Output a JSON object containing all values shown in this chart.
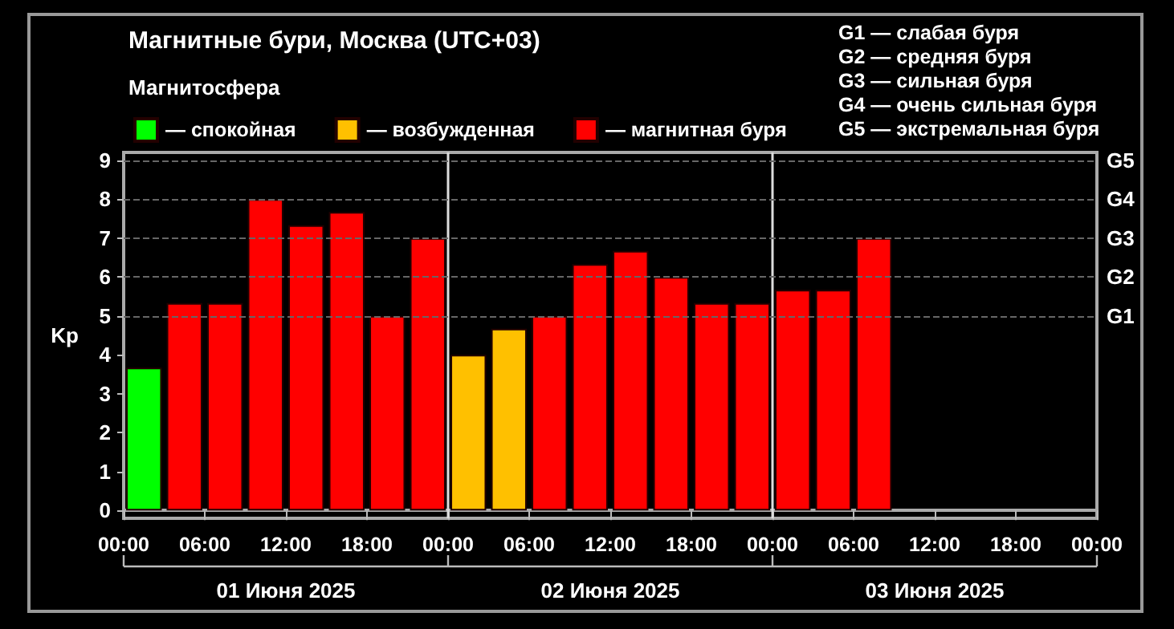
{
  "chart_data": {
    "type": "bar",
    "title": "Магнитные бури, Москва (UTC+03)",
    "legend_title": "Магнитосфера",
    "ylabel": "Kp",
    "x": [
      "2025-06-01T01:30",
      "2025-06-01T04:30",
      "2025-06-01T07:30",
      "2025-06-01T10:30",
      "2025-06-01T13:30",
      "2025-06-01T16:30",
      "2025-06-01T19:30",
      "2025-06-01T22:30",
      "2025-06-02T01:30",
      "2025-06-02T04:30",
      "2025-06-02T07:30",
      "2025-06-02T10:30",
      "2025-06-02T13:30",
      "2025-06-02T16:30",
      "2025-06-02T19:30",
      "2025-06-02T22:30",
      "2025-06-03T01:30",
      "2025-06-03T04:30",
      "2025-06-03T07:30"
    ],
    "series": [
      {
        "name": "— спокойная",
        "color": "#00ff00",
        "values": [
          3.67,
          null,
          null,
          null,
          null,
          null,
          null,
          null,
          null,
          null,
          null,
          null,
          null,
          null,
          null,
          null,
          null,
          null,
          null
        ]
      },
      {
        "name": "— возбужденная",
        "color": "#ffc000",
        "values": [
          null,
          null,
          null,
          null,
          null,
          null,
          null,
          null,
          4,
          4.67,
          null,
          null,
          null,
          null,
          null,
          null,
          null,
          null,
          null
        ]
      },
      {
        "name": "— магнитная буря",
        "color": "#ff0000",
        "values": [
          null,
          5.33,
          5.33,
          8,
          7.33,
          7.67,
          5,
          7,
          null,
          null,
          5,
          6.33,
          6.67,
          6,
          5.33,
          5.33,
          5.67,
          5.67,
          7
        ]
      }
    ],
    "xlim": [
      "2025-06-01T00:00",
      "2025-06-04T00:00"
    ],
    "xticks": [
      {
        "value": "2025-06-01T00:00",
        "label": "00:00"
      },
      {
        "value": "2025-06-01T06:00",
        "label": "06:00"
      },
      {
        "value": "2025-06-01T12:00",
        "label": "12:00"
      },
      {
        "value": "2025-06-01T18:00",
        "label": "18:00"
      },
      {
        "value": "2025-06-02T00:00",
        "label": "00:00"
      },
      {
        "value": "2025-06-02T06:00",
        "label": "06:00"
      },
      {
        "value": "2025-06-02T12:00",
        "label": "12:00"
      },
      {
        "value": "2025-06-02T18:00",
        "label": "18:00"
      },
      {
        "value": "2025-06-03T00:00",
        "label": "00:00"
      },
      {
        "value": "2025-06-03T06:00",
        "label": "06:00"
      },
      {
        "value": "2025-06-03T12:00",
        "label": "12:00"
      },
      {
        "value": "2025-06-03T18:00",
        "label": "18:00"
      },
      {
        "value": "2025-06-04T00:00",
        "label": "00:00"
      }
    ],
    "ylim": [
      -0.2,
      9.2
    ],
    "yticks": [
      0,
      1,
      2,
      3,
      4,
      5,
      6,
      7,
      8,
      9
    ],
    "ref_lines": [
      {
        "axis": "x",
        "value": "2025-06-02T00:00",
        "color": "#dddddd"
      },
      {
        "axis": "x",
        "value": "2025-06-03T00:00",
        "color": "#dddddd"
      },
      {
        "axis": "y",
        "value": 5,
        "label": "G1",
        "color": "#666666",
        "line_style": "dashed"
      },
      {
        "axis": "y",
        "value": 6,
        "label": "G2",
        "color": "#666666",
        "line_style": "dashed"
      },
      {
        "axis": "y",
        "value": 7,
        "label": "G3",
        "color": "#666666",
        "line_style": "dashed"
      },
      {
        "axis": "y",
        "value": 8,
        "label": "G4",
        "color": "#666666",
        "line_style": "dashed"
      },
      {
        "axis": "y",
        "value": 9,
        "label": "G5",
        "color": "#666666",
        "line_style": "dashed"
      }
    ],
    "annotations": [
      "G1 — слабая буря",
      "G2 — средняя буря",
      "G3 — сильная буря",
      "G4 — очень сильная буря",
      "G5 — экстремальная буря",
      "01 Июня 2025",
      "02 Июня 2025",
      "03 Июня 2025"
    ],
    "legend": "top left"
  }
}
